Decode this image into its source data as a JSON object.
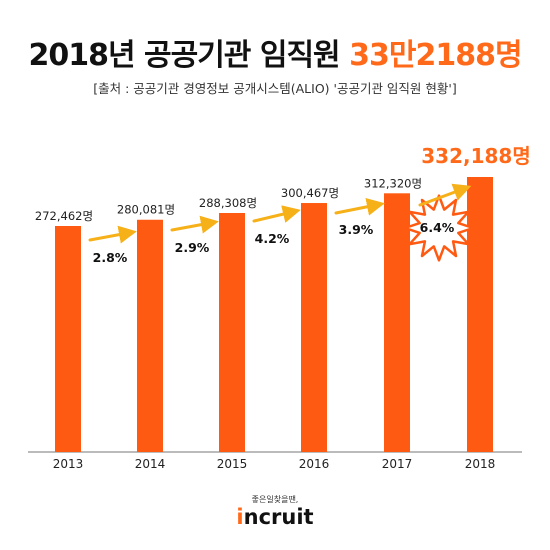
{
  "title": {
    "prefix": "2018년 공공기관 임직원",
    "highlight": "33만2188명"
  },
  "source": "[출처 : 공공기관 경영정보 공개시스템(ALIO) '공공기관 임직원 현황']",
  "colors": {
    "bar": "#ff5a12",
    "arrow": "#f6b018",
    "highlight_text": "#ff6a1a",
    "burst_fill": "#ffffff",
    "burst_stroke": "#ff5a12",
    "axis": "#777777"
  },
  "chart_data": {
    "type": "bar",
    "categories": [
      "2013",
      "2014",
      "2015",
      "2016",
      "2017",
      "2018"
    ],
    "values": [
      272462,
      280081,
      288308,
      300467,
      312320,
      332188
    ],
    "value_labels": [
      "272,462명",
      "280,081명",
      "288,308명",
      "300,467명",
      "312,320명",
      "332,188명"
    ],
    "growth_labels": [
      "2.8%",
      "2.9%",
      "4.2%",
      "3.9%",
      "6.4%"
    ],
    "highlighted_growth_index": 4,
    "highlighted_bar_index": 5,
    "xlabel": "",
    "ylabel": "",
    "grid": false,
    "legend": "none"
  },
  "footer": {
    "tagline": "좋은일찾을땐,",
    "logo_mark": "i",
    "logo_text": "ncruit"
  }
}
